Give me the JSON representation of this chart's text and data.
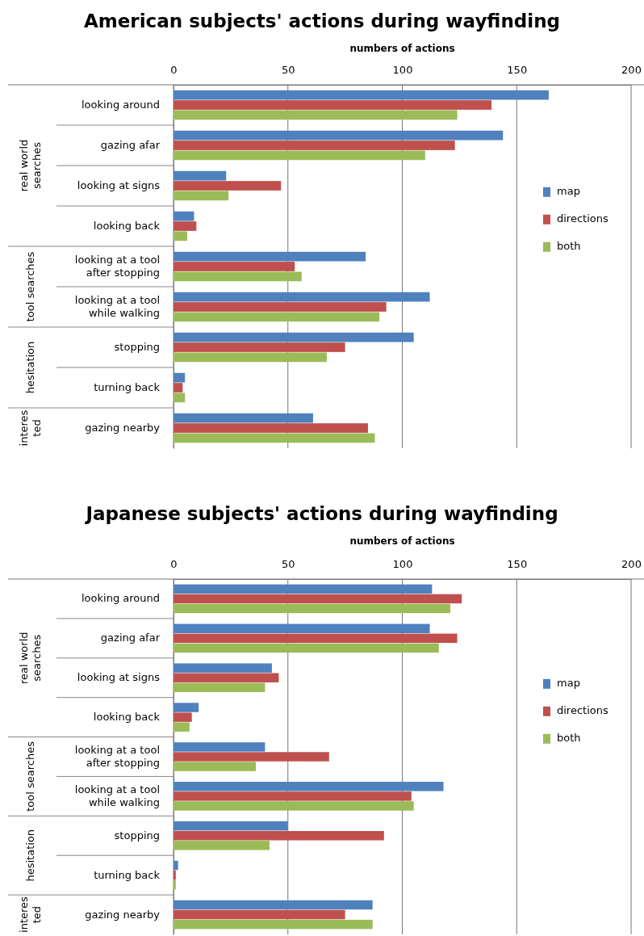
{
  "chart_data": [
    {
      "type": "bar",
      "orientation": "horizontal",
      "title": "American subjects' actions during wayfinding",
      "xlabel": "numbers of actions",
      "categories": [
        "looking around",
        "gazing afar",
        "looking at signs",
        "looking back",
        "looking at a tool\nafter stopping",
        "looking at a tool\nwhile walking",
        "stopping",
        "turning back",
        "gazing nearby"
      ],
      "series": [
        {
          "name": "map",
          "color": "#4f81bd",
          "values": [
            164,
            144,
            23,
            9,
            84,
            112,
            105,
            5,
            61
          ]
        },
        {
          "name": "directions",
          "color": "#c0504d",
          "values": [
            139,
            123,
            47,
            10,
            53,
            93,
            75,
            4,
            85
          ]
        },
        {
          "name": "both",
          "color": "#9bbb59",
          "values": [
            124,
            110,
            24,
            6,
            56,
            90,
            67,
            5,
            88
          ]
        }
      ],
      "xlim": [
        0,
        200
      ],
      "xticks": [
        0,
        50,
        100,
        150,
        200
      ],
      "grid": "x",
      "legend": "right",
      "annotations": [
        "real world\nsearches",
        "tool searches",
        "hesitation",
        "interes\nted"
      ]
    },
    {
      "type": "bar",
      "orientation": "horizontal",
      "title": "Japanese subjects' actions during wayfinding",
      "xlabel": "numbers of actions",
      "categories": [
        "looking around",
        "gazing afar",
        "looking at signs",
        "looking back",
        "looking at a tool\nafter stopping",
        "looking at a tool\nwhile walking",
        "stopping",
        "turning back",
        "gazing nearby"
      ],
      "series": [
        {
          "name": "map",
          "color": "#4f81bd",
          "values": [
            113,
            112,
            43,
            11,
            40,
            118,
            50,
            2,
            87
          ]
        },
        {
          "name": "directions",
          "color": "#c0504d",
          "values": [
            126,
            124,
            46,
            8,
            68,
            104,
            92,
            1,
            75
          ]
        },
        {
          "name": "both",
          "color": "#9bbb59",
          "values": [
            121,
            116,
            40,
            7,
            36,
            105,
            42,
            1,
            87
          ]
        }
      ],
      "xlim": [
        0,
        200
      ],
      "xticks": [
        0,
        50,
        100,
        150,
        200
      ],
      "grid": "x",
      "legend": "right",
      "annotations": [
        "real world\nsearches",
        "tool searches",
        "hesitation",
        "interes\nted"
      ]
    }
  ]
}
